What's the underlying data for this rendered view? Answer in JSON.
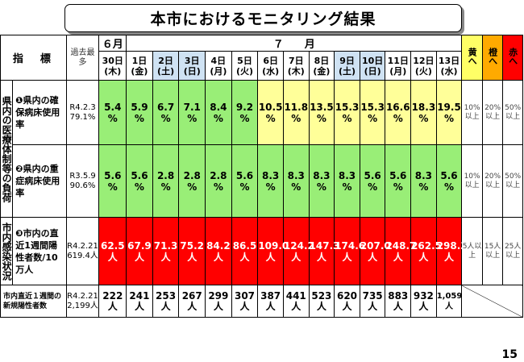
{
  "title": "本市におけるモニタリング結果",
  "page_number": "15",
  "header": {
    "indicator_label": "指　標",
    "past_max_label": "過去最多",
    "month_june": "６月",
    "month_july": "７　　月",
    "days": [
      {
        "d": "30日",
        "w": "(木)"
      },
      {
        "d": "1日",
        "w": "(金)"
      },
      {
        "d": "2日",
        "w": "(土)"
      },
      {
        "d": "3日",
        "w": "(日)"
      },
      {
        "d": "4日",
        "w": "(月)"
      },
      {
        "d": "5日",
        "w": "(火)"
      },
      {
        "d": "6日",
        "w": "(水)"
      },
      {
        "d": "7日",
        "w": "(木)"
      },
      {
        "d": "8日",
        "w": "(金)"
      },
      {
        "d": "9日",
        "w": "(土)"
      },
      {
        "d": "10日",
        "w": "(日)"
      },
      {
        "d": "11日",
        "w": "(月)"
      },
      {
        "d": "12日",
        "w": "(火)"
      },
      {
        "d": "13日",
        "w": "(水)"
      }
    ],
    "yellow": "黄へ",
    "orange": "橙へ",
    "red": "赤へ"
  },
  "side_medical": "県内の医療体制等の負荷",
  "side_infection": "市内感染状況",
  "rows": [
    {
      "name": "❶県内の確保病床使用率",
      "past": "R4.2.3 79.1%",
      "values": [
        "5.4",
        "5.9",
        "6.7",
        "7.1",
        "8.4",
        "9.2",
        "10.5",
        "11.8",
        "13.5",
        "15.3",
        "15.3",
        "16.6",
        "18.3",
        "19.5"
      ],
      "unit": "%",
      "thr_yellow": "10%以上",
      "thr_orange": "20%以上",
      "thr_red": "50%以上"
    },
    {
      "name": "❷県内の重症病床使用率",
      "past": "R3.5.9 90.6%",
      "values": [
        "5.6",
        "5.6",
        "2.8",
        "2.8",
        "2.8",
        "5.6",
        "8.3",
        "8.3",
        "8.3",
        "8.3",
        "5.6",
        "5.6",
        "8.3",
        "5.6"
      ],
      "unit": "%",
      "thr_yellow": "10%以上",
      "thr_orange": "20%以上",
      "thr_red": "50%以上"
    },
    {
      "name": "❸市内の直近1週間陽性者数/10万人",
      "past": "R4.2.21 619.4人",
      "values": [
        "62.5",
        "67.9",
        "71.3",
        "75.2",
        "84.2",
        "86.5",
        "109.0",
        "124.2",
        "147.3",
        "174.6",
        "207.0",
        "248.7",
        "262.5",
        "298.3"
      ],
      "unit": "人",
      "thr_yellow": "5人以上",
      "thr_orange": "15人以上",
      "thr_red": "25人以上"
    }
  ],
  "new_cases": {
    "name": "市内直近１週間の新規陽性者数",
    "past": "R4.2.21 2,199人",
    "values": [
      "222人",
      "241人",
      "253人",
      "267人",
      "299人",
      "307人",
      "387人",
      "441人",
      "523人",
      "620人",
      "735人",
      "883人",
      "932人",
      "1,059人"
    ]
  }
}
